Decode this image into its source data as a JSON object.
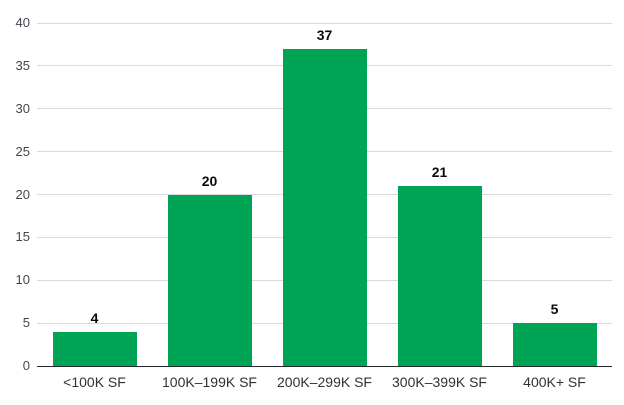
{
  "chart_data": {
    "type": "bar",
    "title": "",
    "xlabel": "",
    "ylabel": "",
    "categories": [
      "<100K SF",
      "100K–199K SF",
      "200K–299K SF",
      "300K–399K SF",
      "400K+ SF"
    ],
    "values": [
      4,
      20,
      37,
      21,
      5
    ],
    "value_labels": [
      "4",
      "20",
      "37",
      "21",
      "5"
    ],
    "ylim": [
      0,
      40
    ],
    "yticks": [
      0,
      5,
      10,
      15,
      20,
      25,
      30,
      35,
      40
    ],
    "ytick_labels": [
      "0",
      "5",
      "10",
      "15",
      "20",
      "25",
      "30",
      "35",
      "40"
    ],
    "grid": true,
    "legend": "none",
    "colors": {
      "bar": "#00A455",
      "gridline": "#D9D9DE",
      "axis_line": "#23262B",
      "y_tick_label": "#45454F",
      "category_label": "#2E3138",
      "value_label": "#0B0B0C",
      "background": "#FFFFFF"
    }
  }
}
